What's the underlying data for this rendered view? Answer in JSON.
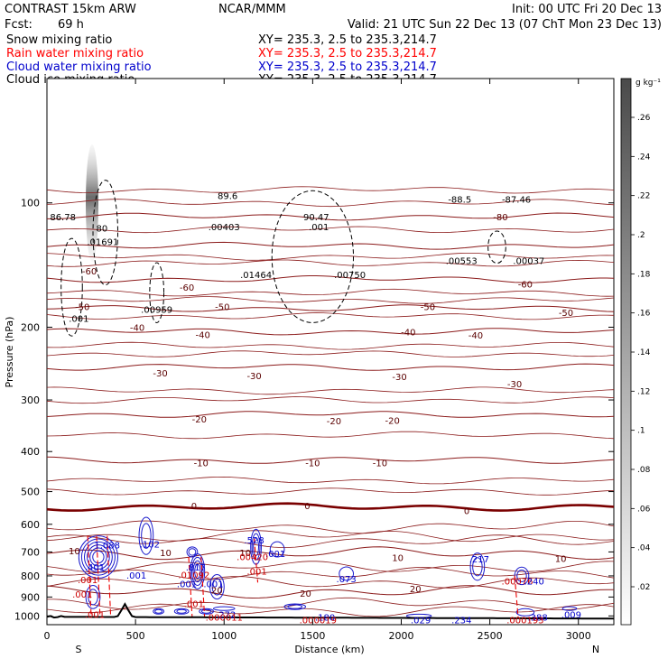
{
  "header": {
    "title": "CONTRAST 15km ARW",
    "fcst_label": "Fcst:",
    "fcst_value": "69 h",
    "center": "NCAR/MMM",
    "init": "Init: 00 UTC Fri 20 Dec 13",
    "valid": "Valid: 21 UTC Sun 22 Dec 13 (07 ChT Mon 23 Dec 13)",
    "fields": [
      {
        "name": "Snow mixing ratio",
        "xy": "XY= 235.3,  2.5 to 235.3,214.7",
        "color": "#000000"
      },
      {
        "name": "Rain water mixing ratio",
        "xy": "XY= 235.3,  2.5 to 235.3,214.7",
        "color": "#ff0000"
      },
      {
        "name": "Cloud water mixing ratio",
        "xy": "XY= 235.3,  2.5 to 235.3,214.7",
        "color": "#0000cc"
      },
      {
        "name": "Cloud ice mixing ratio",
        "xy": "XY= 235.3,  2.5 to 235.3,214.7",
        "color": "#000000"
      }
    ]
  },
  "chart_data": {
    "type": "contour",
    "xlabel": "Distance (km)",
    "ylabel": "Pressure (hPa)",
    "x_range": [
      0,
      3200
    ],
    "y_range": [
      1050,
      50
    ],
    "y_scale": "log",
    "x_ticks": [
      0,
      500,
      1000,
      1500,
      2000,
      2500,
      3000
    ],
    "y_ticks": [
      100,
      200,
      300,
      400,
      500,
      600,
      700,
      800,
      900,
      1000
    ],
    "x_end_labels": [
      "S",
      "N"
    ],
    "temperature_isotherms": {
      "color": "#8b0000",
      "levels": [
        -80,
        -70,
        -60,
        -50,
        -40,
        -30,
        -20,
        -10,
        0,
        10,
        20
      ],
      "labels": [
        {
          "x": 2560,
          "p": 108,
          "text": "-80"
        },
        {
          "x": 240,
          "p": 146,
          "text": "-60"
        },
        {
          "x": 790,
          "p": 160,
          "text": "-60"
        },
        {
          "x": 2700,
          "p": 157,
          "text": "-60"
        },
        {
          "x": 200,
          "p": 178,
          "text": "-50"
        },
        {
          "x": 990,
          "p": 178,
          "text": "-50"
        },
        {
          "x": 2150,
          "p": 178,
          "text": "-50"
        },
        {
          "x": 2930,
          "p": 184,
          "text": "-50"
        },
        {
          "x": 510,
          "p": 200,
          "text": "-40"
        },
        {
          "x": 880,
          "p": 208,
          "text": "-40"
        },
        {
          "x": 2040,
          "p": 205,
          "text": "-40"
        },
        {
          "x": 2420,
          "p": 209,
          "text": "-40"
        },
        {
          "x": 640,
          "p": 258,
          "text": "-30"
        },
        {
          "x": 1170,
          "p": 262,
          "text": "-30"
        },
        {
          "x": 1990,
          "p": 263,
          "text": "-30"
        },
        {
          "x": 2640,
          "p": 274,
          "text": "-30"
        },
        {
          "x": 860,
          "p": 333,
          "text": "-20"
        },
        {
          "x": 1620,
          "p": 337,
          "text": "-20"
        },
        {
          "x": 1950,
          "p": 336,
          "text": "-20"
        },
        {
          "x": 870,
          "p": 425,
          "text": "-10"
        },
        {
          "x": 1500,
          "p": 425,
          "text": "-10"
        },
        {
          "x": 1880,
          "p": 425,
          "text": "-10"
        },
        {
          "x": 830,
          "p": 540,
          "text": "0"
        },
        {
          "x": 1470,
          "p": 540,
          "text": "0"
        },
        {
          "x": 2370,
          "p": 555,
          "text": "0"
        },
        {
          "x": 155,
          "p": 695,
          "text": "10"
        },
        {
          "x": 670,
          "p": 702,
          "text": "10"
        },
        {
          "x": 1120,
          "p": 702,
          "text": "10"
        },
        {
          "x": 1980,
          "p": 722,
          "text": "10"
        },
        {
          "x": 2900,
          "p": 726,
          "text": "10"
        },
        {
          "x": 960,
          "p": 865,
          "text": "20"
        },
        {
          "x": 1460,
          "p": 880,
          "text": "20"
        },
        {
          "x": 2080,
          "p": 858,
          "text": "20"
        }
      ]
    },
    "extrema_labels": [
      {
        "x": 1020,
        "p": 96,
        "text": "89.6",
        "color": "#000000"
      },
      {
        "x": 90,
        "p": 108,
        "text": "86.78",
        "color": "#000000"
      },
      {
        "x": 1520,
        "p": 108,
        "text": "90.47",
        "color": "#000000"
      },
      {
        "x": 2330,
        "p": 98,
        "text": "-88.5",
        "color": "#000000"
      },
      {
        "x": 2650,
        "p": 98,
        "text": "-87.46",
        "color": "#000000"
      },
      {
        "x": 310,
        "p": 115,
        "text": "80",
        "color": "#000000"
      },
      {
        "x": 315,
        "p": 124,
        "text": ".01691",
        "color": "#000000"
      },
      {
        "x": 1000,
        "p": 114,
        "text": ".00403",
        "color": "#000000"
      },
      {
        "x": 1535,
        "p": 114,
        "text": ".001",
        "color": "#000000"
      },
      {
        "x": 1180,
        "p": 149,
        "text": ".01464",
        "color": "#000000"
      },
      {
        "x": 1710,
        "p": 149,
        "text": ".00750",
        "color": "#000000"
      },
      {
        "x": 2340,
        "p": 138,
        "text": ".00553",
        "color": "#000000"
      },
      {
        "x": 2720,
        "p": 138,
        "text": ".00037",
        "color": "#000000"
      },
      {
        "x": 620,
        "p": 181,
        "text": ".00959",
        "color": "#000000"
      },
      {
        "x": 180,
        "p": 190,
        "text": ".001",
        "color": "#000000"
      },
      {
        "x": 340,
        "p": 673,
        "text": "1.088",
        "color": "#0000cc"
      },
      {
        "x": 580,
        "p": 670,
        "text": ".102",
        "color": "#0000cc"
      },
      {
        "x": 1170,
        "p": 655,
        "text": ".528",
        "color": "#0000cc"
      },
      {
        "x": 1290,
        "p": 705,
        "text": ".001",
        "color": "#0000cc"
      },
      {
        "x": 1160,
        "p": 718,
        "text": ".00420",
        "color": "#cc0000"
      },
      {
        "x": 270,
        "p": 760,
        "text": ".401",
        "color": "#0000cc"
      },
      {
        "x": 840,
        "p": 760,
        "text": ".817",
        "color": "#0000cc"
      },
      {
        "x": 505,
        "p": 796,
        "text": ".001",
        "color": "#0000cc"
      },
      {
        "x": 830,
        "p": 795,
        "text": ".01092",
        "color": "#cc0000"
      },
      {
        "x": 1185,
        "p": 778,
        "text": ".001",
        "color": "#cc0000"
      },
      {
        "x": 1690,
        "p": 812,
        "text": ".073",
        "color": "#0000cc"
      },
      {
        "x": 2440,
        "p": 728,
        "text": ".217",
        "color": "#0000cc"
      },
      {
        "x": 2655,
        "p": 823,
        "text": ".00076",
        "color": "#cc0000"
      },
      {
        "x": 2750,
        "p": 823,
        "text": ".240",
        "color": "#0000cc"
      },
      {
        "x": 230,
        "p": 817,
        "text": ".001",
        "color": "#cc0000"
      },
      {
        "x": 790,
        "p": 836,
        "text": ".001",
        "color": "#0000cc"
      },
      {
        "x": 940,
        "p": 836,
        "text": ".001",
        "color": "#0000cc"
      },
      {
        "x": 200,
        "p": 884,
        "text": ".001",
        "color": "#cc0000"
      },
      {
        "x": 830,
        "p": 932,
        "text": ".001",
        "color": "#cc0000"
      },
      {
        "x": 270,
        "p": 990,
        "text": ".001",
        "color": "#cc0000"
      },
      {
        "x": 1010,
        "p": 990,
        "text": ".272",
        "color": "#0000cc"
      },
      {
        "x": 1000,
        "p": 1005,
        "text": ".000011",
        "color": "#cc0000"
      },
      {
        "x": 1570,
        "p": 1005,
        "text": ".180",
        "color": "#0000cc"
      },
      {
        "x": 1530,
        "p": 1021,
        "text": ".000019",
        "color": "#cc0000"
      },
      {
        "x": 2110,
        "p": 1021,
        "text": ".029",
        "color": "#0000cc"
      },
      {
        "x": 2340,
        "p": 1021,
        "text": ".234",
        "color": "#0000cc"
      },
      {
        "x": 2770,
        "p": 1005,
        "text": ".388",
        "color": "#0000cc"
      },
      {
        "x": 2700,
        "p": 1021,
        "text": ".000193",
        "color": "#cc0000"
      },
      {
        "x": 2960,
        "p": 990,
        "text": ".009",
        "color": "#0000cc"
      }
    ],
    "colorbar": {
      "unit": "g kg⁻¹",
      "ticks": [
        ".26",
        ".24",
        ".22",
        ".2",
        ".18",
        ".16",
        ".14",
        ".12",
        ".1",
        ".08",
        ".06",
        ".04",
        ".02"
      ]
    },
    "grid": false
  }
}
